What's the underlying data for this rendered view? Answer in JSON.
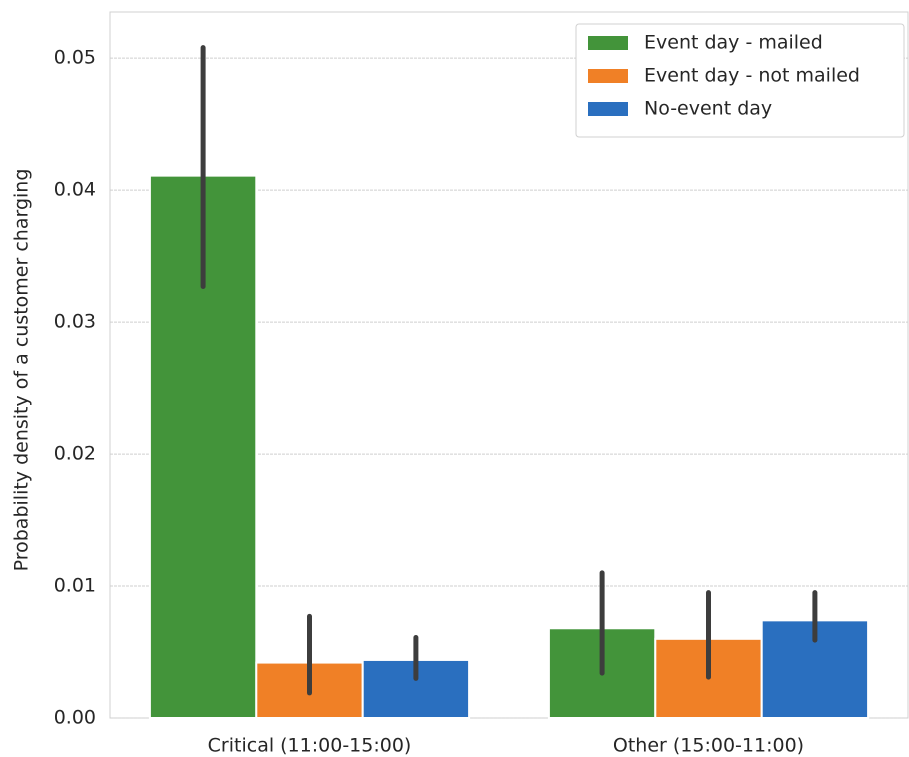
{
  "chart_data": {
    "type": "bar",
    "y_label": "Probability density of a customer charging",
    "categories": [
      "Critical (11:00-15:00)",
      "Other (15:00-11:00)"
    ],
    "series": [
      {
        "name": "Event day - mailed",
        "color": "#43943a",
        "values": [
          0.0411,
          0.0068
        ],
        "ci_low": [
          0.0327,
          0.0034
        ],
        "ci_high": [
          0.0508,
          0.011
        ]
      },
      {
        "name": "Event day - not mailed",
        "color": "#f08026",
        "values": [
          0.0042,
          0.006
        ],
        "ci_low": [
          0.0019,
          0.0031
        ],
        "ci_high": [
          0.0077,
          0.0095
        ]
      },
      {
        "name": "No-event day",
        "color": "#2a6fbf",
        "values": [
          0.0044,
          0.0074
        ],
        "ci_low": [
          0.003,
          0.0059
        ],
        "ci_high": [
          0.0061,
          0.0095
        ]
      }
    ],
    "ylim": [
      0,
      0.0535
    ],
    "yticks": [
      {
        "value": 0,
        "label": "0.00"
      },
      0.01,
      0.02,
      0.03,
      0.04,
      0.05
    ],
    "grid": true,
    "legend": "upper right"
  }
}
